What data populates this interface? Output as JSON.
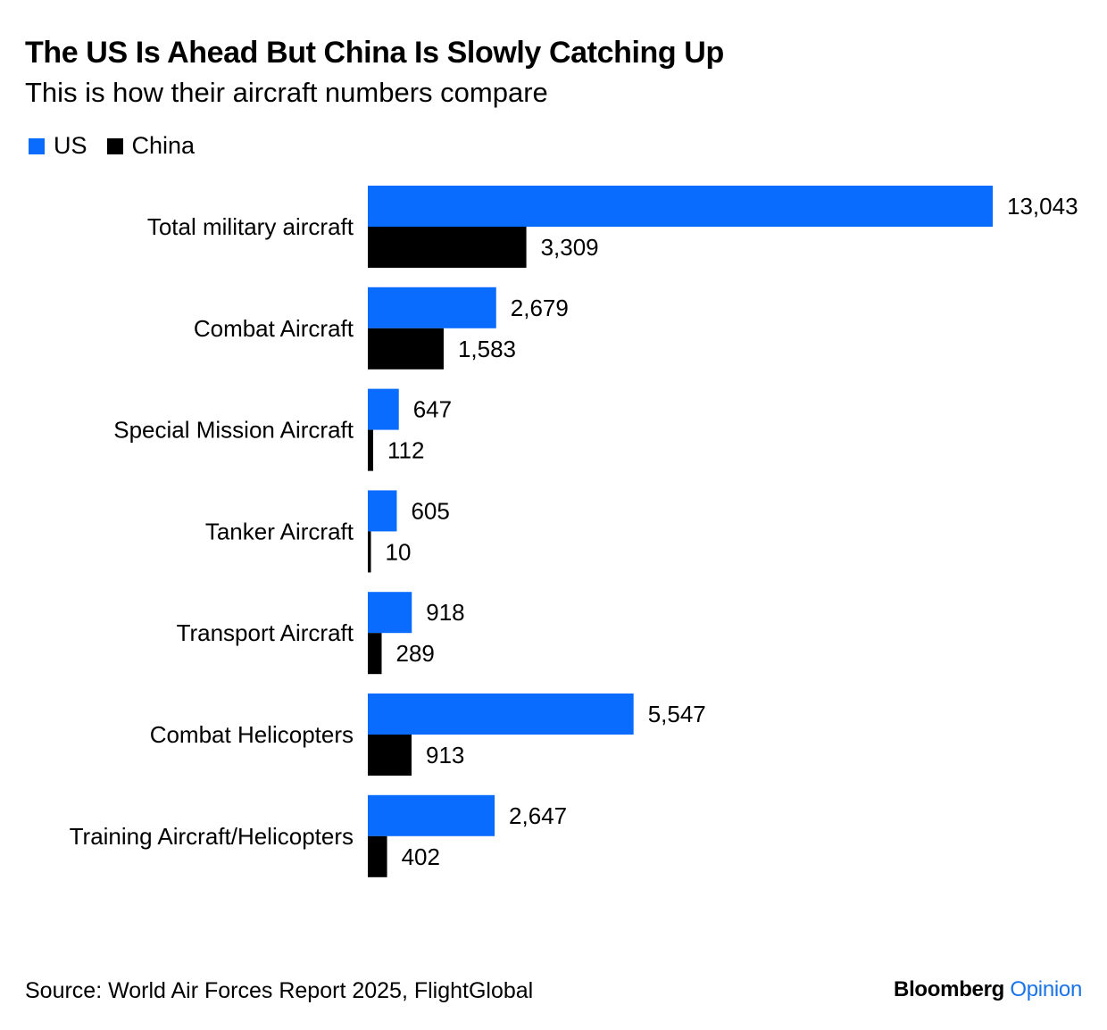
{
  "title": "The US Is Ahead But China Is Slowly Catching Up",
  "subtitle": "This is how their aircraft numbers compare",
  "source": "Source: World Air Forces Report 2025, FlightGlobal",
  "brand": {
    "name": "Bloomberg",
    "suffix": "Opinion"
  },
  "colors": {
    "us": "#0a6cff",
    "china": "#000000",
    "brand_accent": "#1a73e8"
  },
  "chart_data": {
    "type": "bar",
    "orientation": "horizontal",
    "categories": [
      "Total military aircraft",
      "Combat Aircraft",
      "Special Mission Aircraft",
      "Tanker Aircraft",
      "Transport Aircraft",
      "Combat Helicopters",
      "Training Aircraft/Helicopters"
    ],
    "series": [
      {
        "name": "US",
        "values": [
          13043,
          2679,
          647,
          605,
          918,
          5547,
          2647
        ],
        "labels": [
          "13,043",
          "2,679",
          "647",
          "605",
          "918",
          "5,547",
          "2,647"
        ]
      },
      {
        "name": "China",
        "values": [
          3309,
          1583,
          112,
          10,
          289,
          913,
          402
        ],
        "labels": [
          "3,309",
          "1,583",
          "112",
          "10",
          "289",
          "913",
          "402"
        ]
      }
    ],
    "xlim": [
      0,
      13043
    ],
    "legend": "top-left",
    "grid": false
  }
}
